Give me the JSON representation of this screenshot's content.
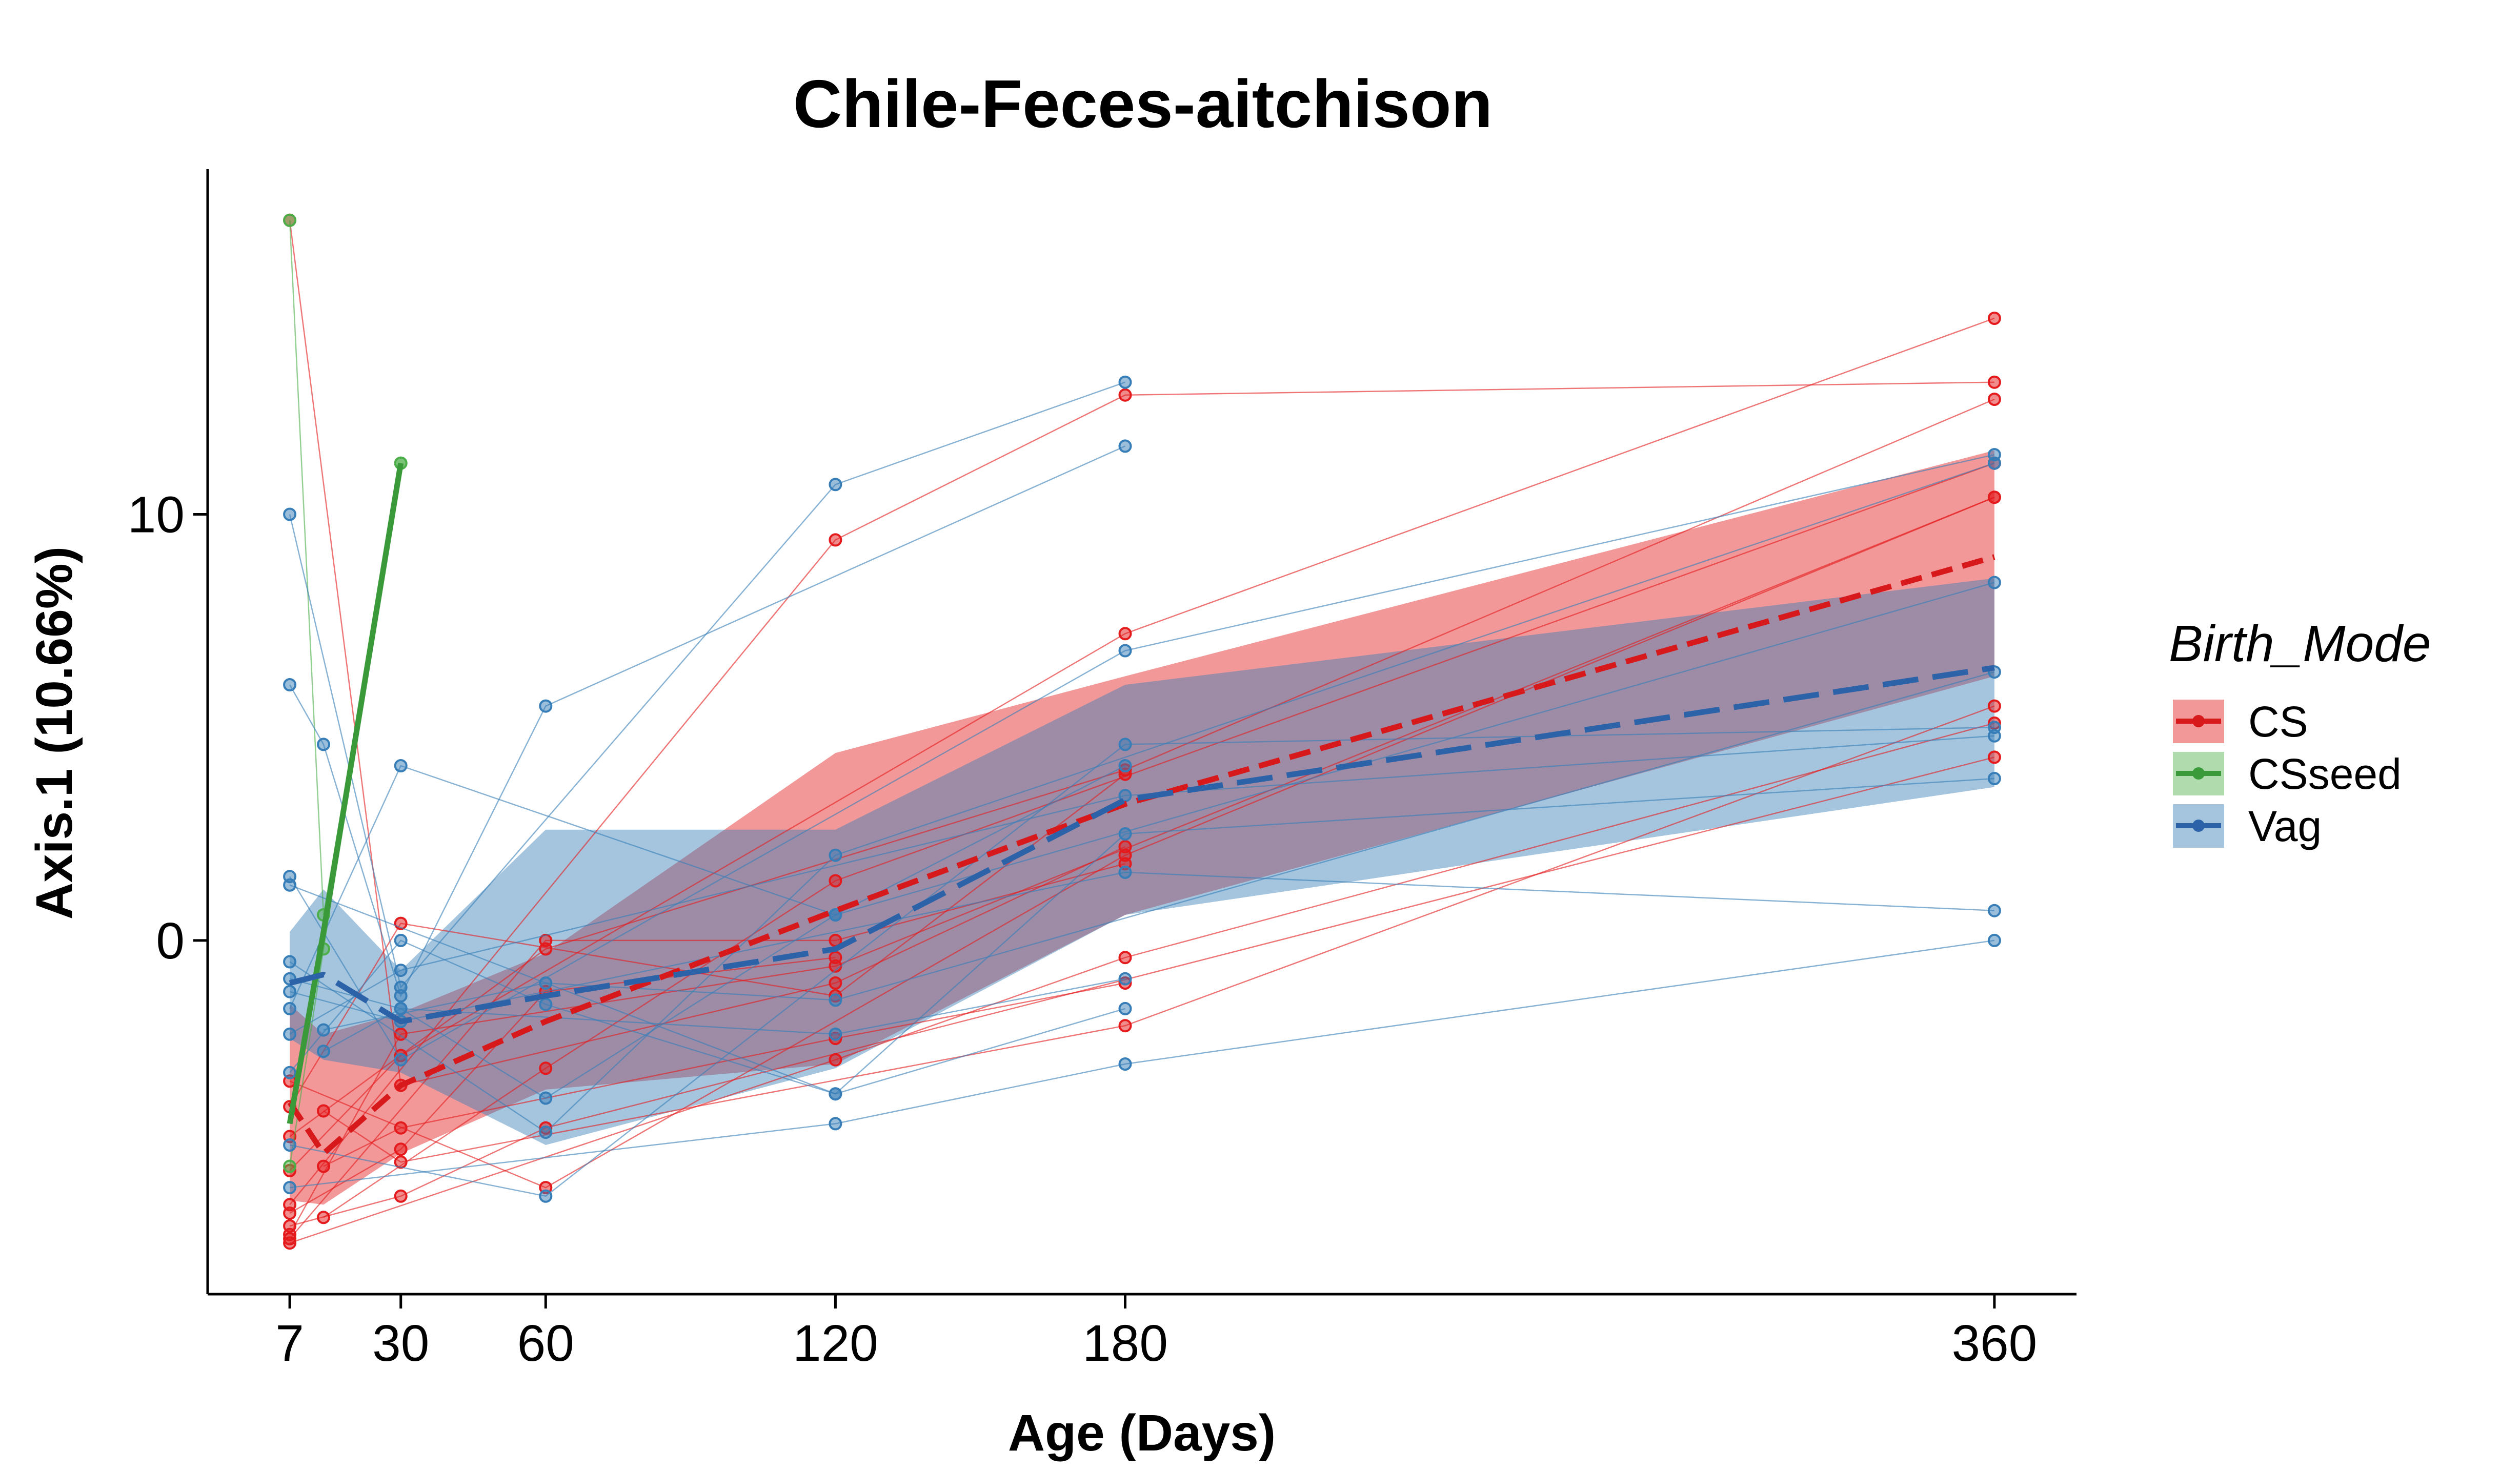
{
  "chart_data": {
    "type": "line",
    "title": "Chile-Feces-aitchison",
    "xlabel": "Age (Days)",
    "ylabel": "Axis.1 (10.66%)",
    "x_ticks": [
      7,
      30,
      60,
      120,
      180,
      360
    ],
    "y_ticks": [
      0,
      10
    ],
    "xlim": [
      -10,
      377
    ],
    "ylim": [
      -8.3,
      18.1
    ],
    "grid": false,
    "legend": {
      "title": "Birth_Mode",
      "position": "right",
      "entries": [
        "CS",
        "CSseed",
        "Vag"
      ]
    },
    "colors": {
      "CS": "#E41A1C",
      "CSseed": "#4DAF4A",
      "Vag": "#377EB8",
      "CS_mean": "#D7191C",
      "CSseed_mean": "#3A9A3A",
      "Vag_mean": "#2C62A7"
    },
    "series": [
      {
        "name": "CS",
        "mean": {
          "x": [
            7,
            14,
            30,
            60,
            120,
            180,
            360
          ],
          "y": [
            -3.8,
            -5.0,
            -3.4,
            -1.9,
            0.7,
            3.2,
            9.0
          ]
        },
        "ribbon": {
          "x": [
            7,
            14,
            30,
            60,
            120,
            180,
            360
          ],
          "upper": [
            -1.5,
            -2.2,
            -1.7,
            -0.3,
            4.4,
            6.2,
            11.5
          ],
          "lower": [
            -6.1,
            -6.2,
            -5.0,
            -3.5,
            -2.9,
            0.6,
            6.2
          ]
        }
      },
      {
        "name": "CSseed",
        "mean": {
          "x": [
            7,
            14,
            30
          ],
          "y": [
            -4.3,
            0.2,
            11.2
          ]
        }
      },
      {
        "name": "Vag",
        "mean": {
          "x": [
            7,
            14,
            30,
            60,
            120,
            180,
            360
          ],
          "y": [
            -1.0,
            -0.8,
            -1.9,
            -1.3,
            -0.2,
            3.3,
            6.4
          ]
        },
        "ribbon": {
          "x": [
            7,
            14,
            30,
            60,
            120,
            180,
            360
          ],
          "upper": [
            0.2,
            1.2,
            -0.7,
            2.6,
            2.6,
            6.0,
            8.5
          ],
          "lower": [
            -2.3,
            -2.8,
            -3.1,
            -4.8,
            -3.0,
            0.6,
            3.6
          ]
        }
      }
    ],
    "subjects": [
      {
        "group": "CS",
        "x": [
          7,
          120,
          180,
          360
        ],
        "y": [
          -6.2,
          9.4,
          12.8,
          13.1
        ]
      },
      {
        "group": "CS",
        "x": [
          7,
          30,
          180,
          360
        ],
        "y": [
          -5.4,
          -2.7,
          7.2,
          14.6
        ]
      },
      {
        "group": "CS",
        "x": [
          7,
          60,
          180,
          360
        ],
        "y": [
          -4.6,
          -0.2,
          4.0,
          12.7
        ]
      },
      {
        "group": "CS",
        "x": [
          14,
          60,
          120,
          360
        ],
        "y": [
          -6.5,
          -3.0,
          1.4,
          11.2
        ]
      },
      {
        "group": "CS",
        "x": [
          7,
          30,
          120,
          360
        ],
        "y": [
          -6.9,
          -2.2,
          -0.6,
          10.4
        ]
      },
      {
        "group": "CS",
        "x": [
          7,
          60,
          180,
          360
        ],
        "y": [
          -3.3,
          -5.8,
          2.0,
          10.4
        ]
      },
      {
        "group": "CS",
        "x": [
          14,
          30,
          180,
          360
        ],
        "y": [
          -4.0,
          -5.2,
          -2.0,
          5.5
        ]
      },
      {
        "group": "CS",
        "x": [
          7,
          120,
          180,
          360
        ],
        "y": [
          -7.1,
          -2.8,
          -0.4,
          5.1
        ]
      },
      {
        "group": "CS",
        "x": [
          7,
          30,
          60,
          360
        ],
        "y": [
          -6.7,
          -6.0,
          -4.4,
          4.3
        ]
      },
      {
        "group": "CS",
        "x": [
          7,
          30,
          120,
          180
        ],
        "y": [
          -3.9,
          0.4,
          -1.3,
          3.9
        ]
      },
      {
        "group": "CS",
        "x": [
          7,
          30,
          120,
          180
        ],
        "y": [
          16.9,
          -3.4,
          -1.0,
          2.2
        ]
      },
      {
        "group": "CS",
        "x": [
          14,
          30,
          120,
          180
        ],
        "y": [
          -5.3,
          -4.4,
          -2.3,
          -1.0
        ]
      },
      {
        "group": "CS",
        "x": [
          7,
          60,
          120,
          180
        ],
        "y": [
          -7.0,
          0.0,
          0.0,
          1.8
        ]
      },
      {
        "group": "CS",
        "x": [
          7,
          30,
          60,
          120
        ],
        "y": [
          -6.4,
          -4.9,
          -1.2,
          -0.4
        ]
      },
      {
        "group": "CSseed",
        "x": [
          7,
          14,
          30
        ],
        "y": [
          -5.3,
          -0.2,
          11.2
        ]
      },
      {
        "group": "CSseed",
        "x": [
          7,
          14,
          30
        ],
        "y": [
          16.9,
          0.6,
          11.2
        ]
      },
      {
        "group": "Vag",
        "x": [
          7,
          30,
          120,
          180
        ],
        "y": [
          10.0,
          -1.1,
          10.7,
          13.1
        ]
      },
      {
        "group": "Vag",
        "x": [
          7,
          14,
          30,
          60,
          180
        ],
        "y": [
          6.0,
          4.6,
          -1.3,
          5.5,
          11.6
        ]
      },
      {
        "group": "Vag",
        "x": [
          7,
          30,
          180,
          360
        ],
        "y": [
          1.5,
          -2.8,
          6.8,
          11.4
        ]
      },
      {
        "group": "Vag",
        "x": [
          7,
          60,
          120,
          360
        ],
        "y": [
          -0.5,
          -4.5,
          2.0,
          11.2
        ]
      },
      {
        "group": "Vag",
        "x": [
          7,
          30,
          120,
          360
        ],
        "y": [
          -1.6,
          4.1,
          0.6,
          8.4
        ]
      },
      {
        "group": "Vag",
        "x": [
          14,
          60,
          120,
          360
        ],
        "y": [
          -2.1,
          -1.0,
          -1.4,
          6.3
        ]
      },
      {
        "group": "Vag",
        "x": [
          7,
          60,
          180,
          360
        ],
        "y": [
          -4.8,
          -6.0,
          4.6,
          5.0
        ]
      },
      {
        "group": "Vag",
        "x": [
          7,
          30,
          180,
          360
        ],
        "y": [
          -2.2,
          -0.7,
          3.4,
          4.8
        ]
      },
      {
        "group": "Vag",
        "x": [
          7,
          120,
          180,
          360
        ],
        "y": [
          1.3,
          -3.6,
          2.5,
          3.8
        ]
      },
      {
        "group": "Vag",
        "x": [
          7,
          30,
          180,
          360
        ],
        "y": [
          -1.2,
          -1.9,
          1.6,
          0.7
        ]
      },
      {
        "group": "Vag",
        "x": [
          7,
          120,
          180,
          360
        ],
        "y": [
          -5.8,
          -4.3,
          -2.9,
          0.0
        ]
      },
      {
        "group": "Vag",
        "x": [
          7,
          30,
          60,
          120,
          180
        ],
        "y": [
          -3.1,
          0.0,
          -1.5,
          -3.6,
          -1.6
        ]
      },
      {
        "group": "Vag",
        "x": [
          7,
          30,
          120,
          180
        ],
        "y": [
          -0.9,
          -1.6,
          -2.2,
          -0.9
        ]
      },
      {
        "group": "Vag",
        "x": [
          14,
          30,
          60,
          120,
          180
        ],
        "y": [
          -2.6,
          -1.6,
          -3.7,
          0.6,
          4.1
        ]
      }
    ]
  }
}
